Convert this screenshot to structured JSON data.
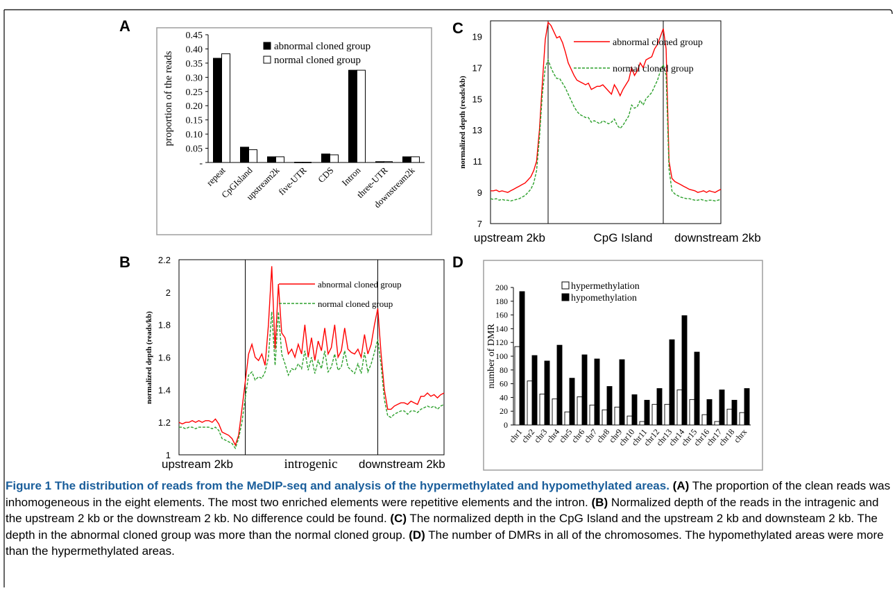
{
  "panels": {
    "A": "A",
    "B": "B",
    "C": "C",
    "D": "D"
  },
  "chart_data": [
    {
      "panel": "A",
      "type": "bar",
      "ylabel": "proportion of the reads",
      "ylim": [
        0,
        0.45
      ],
      "yticks": [
        "-",
        "0.05",
        "0.10",
        "0.15",
        "0.20",
        "0.25",
        "0.30",
        "0.35",
        "0.40",
        "0.45"
      ],
      "categories": [
        "repeat",
        "CpGIsland",
        "upstream2k",
        "five-UTR",
        "CDS",
        "Intron",
        "three-UTR",
        "downstream2k"
      ],
      "series": [
        {
          "name": "abnormal cloned group",
          "color": "#000000",
          "values": [
            0.367,
            0.054,
            0.02,
            0.001,
            0.03,
            0.325,
            0.003,
            0.02
          ]
        },
        {
          "name": "normal cloned group",
          "color": "#ffffff",
          "values": [
            0.383,
            0.045,
            0.02,
            0.001,
            0.027,
            0.325,
            0.003,
            0.02
          ]
        }
      ],
      "legend": "top-right",
      "grid": false
    },
    {
      "panel": "B",
      "type": "line",
      "ylabel": "normalized depth (reads/kb)",
      "ylim": [
        1,
        2.2
      ],
      "yticks": [
        "1",
        "1.2",
        "1.4",
        "1.6",
        "1.8",
        "2",
        "2.2"
      ],
      "region_labels": [
        "upstream 2kb",
        "introgenic",
        "downstream 2kb"
      ],
      "boundaries": [
        20,
        60
      ],
      "x_count": 81,
      "series": [
        {
          "name": "abnormal cloned group",
          "color": "#ff0000",
          "style": "solid",
          "values": [
            1.2,
            1.19,
            1.2,
            1.2,
            1.21,
            1.2,
            1.21,
            1.2,
            1.21,
            1.21,
            1.2,
            1.22,
            1.19,
            1.14,
            1.13,
            1.12,
            1.1,
            1.06,
            1.12,
            1.28,
            1.45,
            1.62,
            1.68,
            1.6,
            1.58,
            1.62,
            1.55,
            1.8,
            2.16,
            1.65,
            2.05,
            1.75,
            1.72,
            1.62,
            1.65,
            1.6,
            1.68,
            1.62,
            1.8,
            1.6,
            1.72,
            1.58,
            1.7,
            1.64,
            1.78,
            1.62,
            1.66,
            1.8,
            1.6,
            1.64,
            1.78,
            1.65,
            1.63,
            1.62,
            1.65,
            1.6,
            1.74,
            1.62,
            1.68,
            1.8,
            1.9,
            1.62,
            1.4,
            1.28,
            1.28,
            1.3,
            1.31,
            1.32,
            1.32,
            1.31,
            1.33,
            1.32,
            1.31,
            1.36,
            1.36,
            1.38,
            1.36,
            1.37,
            1.35,
            1.37,
            1.38
          ]
        },
        {
          "name": "normal cloned group",
          "color": "#2ca02c",
          "style": "dashed",
          "values": [
            1.17,
            1.17,
            1.16,
            1.17,
            1.17,
            1.16,
            1.17,
            1.17,
            1.17,
            1.17,
            1.16,
            1.17,
            1.15,
            1.1,
            1.09,
            1.08,
            1.07,
            1.04,
            1.1,
            1.2,
            1.35,
            1.49,
            1.51,
            1.46,
            1.48,
            1.47,
            1.51,
            1.6,
            1.88,
            1.55,
            1.88,
            1.62,
            1.56,
            1.49,
            1.53,
            1.52,
            1.56,
            1.53,
            1.64,
            1.52,
            1.6,
            1.5,
            1.58,
            1.53,
            1.64,
            1.51,
            1.54,
            1.62,
            1.52,
            1.54,
            1.64,
            1.54,
            1.52,
            1.5,
            1.56,
            1.5,
            1.63,
            1.51,
            1.56,
            1.63,
            1.71,
            1.55,
            1.34,
            1.24,
            1.23,
            1.25,
            1.26,
            1.27,
            1.27,
            1.25,
            1.27,
            1.27,
            1.26,
            1.28,
            1.29,
            1.3,
            1.29,
            1.3,
            1.28,
            1.3,
            1.31
          ]
        }
      ],
      "legend": "top-right",
      "grid": false
    },
    {
      "panel": "C",
      "type": "line",
      "ylabel": "normalized depth (reads/kb)",
      "ylim": [
        7,
        20
      ],
      "yticks": [
        "7",
        "9",
        "11",
        "13",
        "15",
        "17",
        "19"
      ],
      "region_labels": [
        "upstream 2kb",
        "CpG Island",
        "downstream 2kb"
      ],
      "boundaries": [
        20,
        60
      ],
      "x_count": 81,
      "series": [
        {
          "name": "abnormal cloned group",
          "color": "#ff0000",
          "style": "solid",
          "values": [
            9.1,
            9.1,
            9.15,
            9.05,
            9.1,
            9.05,
            9.0,
            9.1,
            9.2,
            9.3,
            9.4,
            9.5,
            9.6,
            9.8,
            10.0,
            10.4,
            11.0,
            13.0,
            16.0,
            18.8,
            19.9,
            19.7,
            19.3,
            18.9,
            19.0,
            18.6,
            18.0,
            17.3,
            16.9,
            16.5,
            16.2,
            16.1,
            16.0,
            15.9,
            16.0,
            15.6,
            15.7,
            15.8,
            15.8,
            15.9,
            15.7,
            15.5,
            15.3,
            15.9,
            15.6,
            15.2,
            15.6,
            15.9,
            16.2,
            17.0,
            16.5,
            16.8,
            17.3,
            17.0,
            17.5,
            17.6,
            17.7,
            18.2,
            18.5,
            19.0,
            19.5,
            18.2,
            11.0,
            9.9,
            9.7,
            9.6,
            9.5,
            9.4,
            9.3,
            9.2,
            9.15,
            9.1,
            9.0,
            9.05,
            9.1,
            9.0,
            9.1,
            9.05,
            9.0,
            9.1,
            9.2
          ]
        },
        {
          "name": "normal cloned group",
          "color": "#2ca02c",
          "style": "dashed",
          "values": [
            8.6,
            8.55,
            8.6,
            8.5,
            8.55,
            8.5,
            8.5,
            8.45,
            8.5,
            8.55,
            8.6,
            8.7,
            8.8,
            9.0,
            9.2,
            9.6,
            10.4,
            12.5,
            15.3,
            17.0,
            17.5,
            17.0,
            16.6,
            16.3,
            16.3,
            16.0,
            15.7,
            15.3,
            14.9,
            14.5,
            14.2,
            14.0,
            13.9,
            13.8,
            13.8,
            13.5,
            13.6,
            13.5,
            13.4,
            13.6,
            13.5,
            13.4,
            13.5,
            13.7,
            13.3,
            13.1,
            13.3,
            13.6,
            13.9,
            14.6,
            14.4,
            14.5,
            14.9,
            14.6,
            15.0,
            15.2,
            15.4,
            15.8,
            16.2,
            16.8,
            17.2,
            16.5,
            10.5,
            9.1,
            8.9,
            8.8,
            8.7,
            8.65,
            8.6,
            8.6,
            8.55,
            8.5,
            8.5,
            8.55,
            8.5,
            8.45,
            8.5,
            8.5,
            8.45,
            8.5,
            8.55
          ]
        }
      ],
      "legend": "top-right",
      "grid": false
    },
    {
      "panel": "D",
      "type": "bar",
      "ylabel": "number of DMR",
      "ylim": [
        0,
        200
      ],
      "yticks": [
        "0",
        "20",
        "40",
        "60",
        "80",
        "100",
        "120",
        "140",
        "160",
        "180",
        "200"
      ],
      "categories": [
        "chr1",
        "chr2",
        "chr3",
        "chr4",
        "chr5",
        "chr6",
        "chr7",
        "chr8",
        "chr9",
        "chr10",
        "chr11",
        "chr12",
        "chr13",
        "chr14",
        "chr15",
        "chr16",
        "chr17",
        "chr18",
        "chrx"
      ],
      "series": [
        {
          "name": "hypermethylation",
          "color": "#ffffff",
          "values": [
            114,
            64,
            45,
            38,
            19,
            41,
            29,
            22,
            26,
            13,
            5,
            30,
            30,
            51,
            37,
            15,
            5,
            23,
            18
          ]
        },
        {
          "name": "hypomethylation",
          "color": "#000000",
          "values": [
            194,
            101,
            93,
            116,
            68,
            102,
            96,
            56,
            95,
            44,
            36,
            53,
            124,
            159,
            106,
            37,
            51,
            36,
            53
          ]
        }
      ],
      "legend": "top-left",
      "grid": false
    }
  ],
  "caption": {
    "title": "Figure 1 The distribution of reads from the MeDIP-seq and analysis of the hypermethylated and hypomethylated areas.",
    "parts": [
      {
        "label": "(A)",
        "text": " The proportion of the clean reads was inhomogeneous in the eight elements. The most two enriched elements were repetitive elements and the intron. "
      },
      {
        "label": "(B)",
        "text": " Normalized depth of the reads in the intragenic and the upstream 2 kb or the downstream 2 kb. No difference could be found. "
      },
      {
        "label": "(C)",
        "text": " The normalized depth in the CpG Island and the upstream 2 kb and downsteam 2 kb. The depth in the abnormal cloned group was more than the normal cloned group. "
      },
      {
        "label": "(D)",
        "text": " The number of DMRs in all of the chromosomes. The hypomethylated areas were more than the hypermethylated areas."
      }
    ]
  }
}
